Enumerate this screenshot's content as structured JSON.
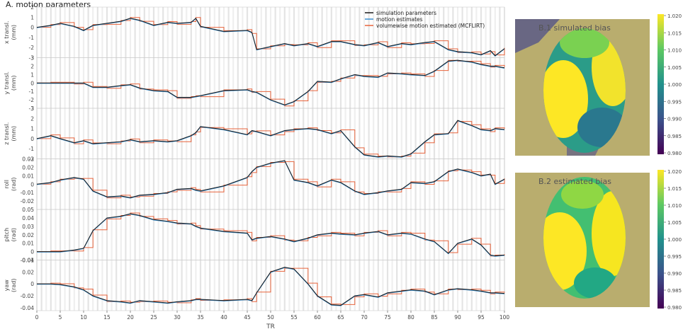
{
  "figure": {
    "panel_a_title": "A. motion parameters",
    "panel_b1_title": "B.1 simulated bias",
    "panel_b2_title": "B.2 estimated bias"
  },
  "chart_data": [
    {
      "type": "line",
      "xlabel": "TR",
      "xlim": [
        0,
        100
      ],
      "x_ticks": [
        0,
        5,
        10,
        15,
        20,
        25,
        30,
        35,
        40,
        45,
        50,
        55,
        60,
        65,
        70,
        75,
        80,
        85,
        90,
        95,
        100
      ],
      "x": [
        0,
        3,
        5,
        8,
        10,
        12,
        15,
        18,
        20,
        22,
        25,
        28,
        30,
        33,
        34,
        35,
        40,
        45,
        46,
        47,
        50,
        53,
        55,
        58,
        60,
        63,
        65,
        68,
        70,
        73,
        75,
        78,
        80,
        83,
        85,
        88,
        90,
        93,
        95,
        97,
        98,
        100
      ],
      "legend": {
        "position": "top-right",
        "entries": [
          {
            "name": "simulation parameters",
            "color": "#1a1a1a"
          },
          {
            "name": "motion estimates",
            "color": "#3a8fd0"
          },
          {
            "name": "volumewise motion estimated (MCFLIRT)",
            "color": "#e8643c"
          }
        ]
      },
      "panels": [
        {
          "ylabel": "x transl.\n(mm)",
          "ylim": [
            -3,
            2
          ],
          "yticks": [
            -3,
            -2,
            -1,
            0,
            1,
            2
          ],
          "values": [
            0,
            0.2,
            0.4,
            0.1,
            -0.3,
            0.2,
            0.4,
            0.6,
            0.9,
            0.7,
            0.2,
            0.5,
            0.4,
            0.5,
            0.9,
            0.1,
            -0.4,
            -0.3,
            -0.5,
            -2.2,
            -1.9,
            -1.6,
            -1.8,
            -1.6,
            -1.9,
            -1.4,
            -1.4,
            -1.7,
            -1.8,
            -1.5,
            -1.9,
            -1.6,
            -1.7,
            -1.5,
            -1.4,
            -2.2,
            -2.4,
            -2.5,
            -2.7,
            -2.3,
            -2.8,
            -2.1
          ]
        },
        {
          "ylabel": "y transl.\n(mm)",
          "ylim": [
            -3,
            3
          ],
          "yticks": [
            -3,
            -2,
            -1,
            0,
            1,
            2,
            3
          ],
          "values": [
            0,
            0,
            0,
            0,
            0,
            -0.5,
            -0.5,
            -0.3,
            -0.2,
            -0.6,
            -0.9,
            -1.0,
            -1.7,
            -1.7,
            -1.6,
            -1.5,
            -0.9,
            -0.8,
            -1.0,
            -1.1,
            -2.0,
            -2.6,
            -2.2,
            -1.0,
            0.2,
            0.1,
            0.5,
            1.0,
            0.8,
            0.7,
            1.2,
            1.1,
            1.0,
            0.9,
            1.4,
            2.6,
            2.7,
            2.5,
            2.2,
            2.0,
            2.0,
            1.8
          ]
        },
        {
          "ylabel": "z transl.\n(mm)",
          "ylim": [
            -2,
            3
          ],
          "yticks": [
            -2,
            -1,
            0,
            1,
            2,
            3
          ],
          "values": [
            0,
            0.3,
            0,
            -0.4,
            -0.2,
            -0.5,
            -0.4,
            -0.3,
            -0.1,
            -0.3,
            -0.2,
            -0.3,
            -0.2,
            0.3,
            0.6,
            1.2,
            0.9,
            0.4,
            0.8,
            0.7,
            0.3,
            0.8,
            0.9,
            1.0,
            0.9,
            0.5,
            0.8,
            -0.8,
            -1.6,
            -1.8,
            -1.7,
            -1.8,
            -1.5,
            -0.3,
            0.4,
            0.5,
            1.8,
            1.3,
            0.9,
            0.8,
            1.0,
            0.9
          ]
        },
        {
          "ylabel": "roll\n(rad)",
          "ylim": [
            -0.03,
            0.03
          ],
          "yticks": [
            -0.02,
            -0.01,
            0.0,
            0.01,
            0.02,
            0.03
          ],
          "values": [
            0,
            0.002,
            0.005,
            0.008,
            0.006,
            -0.008,
            -0.015,
            -0.014,
            -0.016,
            -0.013,
            -0.012,
            -0.01,
            -0.006,
            -0.005,
            -0.007,
            -0.008,
            -0.002,
            0.008,
            0.015,
            0.02,
            0.025,
            0.028,
            0.005,
            0.002,
            -0.002,
            0.005,
            0.002,
            -0.008,
            -0.012,
            -0.01,
            -0.008,
            -0.006,
            0.002,
            0.001,
            0.003,
            0.015,
            0.018,
            0.014,
            0.01,
            0.012,
            0.0,
            0.006
          ]
        },
        {
          "ylabel": "pitch\n(rad)",
          "ylim": [
            -0.01,
            0.05
          ],
          "yticks": [
            -0.01,
            0.0,
            0.01,
            0.02,
            0.03,
            0.04,
            0.05
          ],
          "values": [
            0,
            0,
            0,
            0.002,
            0.004,
            0.025,
            0.04,
            0.042,
            0.045,
            0.043,
            0.038,
            0.036,
            0.034,
            0.033,
            0.03,
            0.028,
            0.024,
            0.022,
            0.014,
            0.016,
            0.018,
            0.015,
            0.012,
            0.016,
            0.02,
            0.022,
            0.021,
            0.02,
            0.022,
            0.024,
            0.02,
            0.022,
            0.021,
            0.015,
            0.012,
            -0.002,
            0.01,
            0.015,
            0.008,
            -0.004,
            -0.005,
            -0.004
          ]
        },
        {
          "ylabel": "yaw\n(rad)",
          "ylim": [
            -0.045,
            0.04
          ],
          "yticks": [
            -0.04,
            -0.02,
            0.0,
            0.02,
            0.04
          ],
          "values": [
            0,
            0,
            -0.001,
            -0.005,
            -0.01,
            -0.02,
            -0.028,
            -0.03,
            -0.032,
            -0.028,
            -0.03,
            -0.032,
            -0.03,
            -0.028,
            -0.026,
            -0.026,
            -0.028,
            -0.026,
            -0.028,
            -0.015,
            0.02,
            0.028,
            0.025,
            0.0,
            -0.02,
            -0.035,
            -0.036,
            -0.02,
            -0.018,
            -0.022,
            -0.015,
            -0.012,
            -0.01,
            -0.012,
            -0.018,
            -0.01,
            -0.008,
            -0.01,
            -0.012,
            -0.015,
            -0.015,
            -0.016
          ]
        }
      ]
    },
    {
      "type": "heatmap",
      "title": "B.1 simulated bias",
      "colorbar_ticks": [
        "1.020",
        "1.015",
        "1.010",
        "1.005",
        "1.000",
        "0.995",
        "0.990",
        "0.985",
        "0.980"
      ],
      "vmin": 0.98,
      "vmax": 1.02,
      "colormap": "viridis"
    },
    {
      "type": "heatmap",
      "title": "B.2 estimated bias",
      "colorbar_ticks": [
        "1.020",
        "1.015",
        "1.010",
        "1.005",
        "1.000",
        "0.995",
        "0.990",
        "0.985",
        "0.980"
      ],
      "vmin": 0.98,
      "vmax": 1.02,
      "colormap": "viridis"
    }
  ],
  "colors": {
    "sim": "#1a1a1a",
    "est": "#3a8fd0",
    "mcflirt": "#e8643c",
    "bg_olive": "#b9ad6e",
    "viridis_top": "#fde725",
    "viridis_mid": "#21918c",
    "viridis_low": "#3b528b",
    "viridis_bottom": "#440154"
  }
}
